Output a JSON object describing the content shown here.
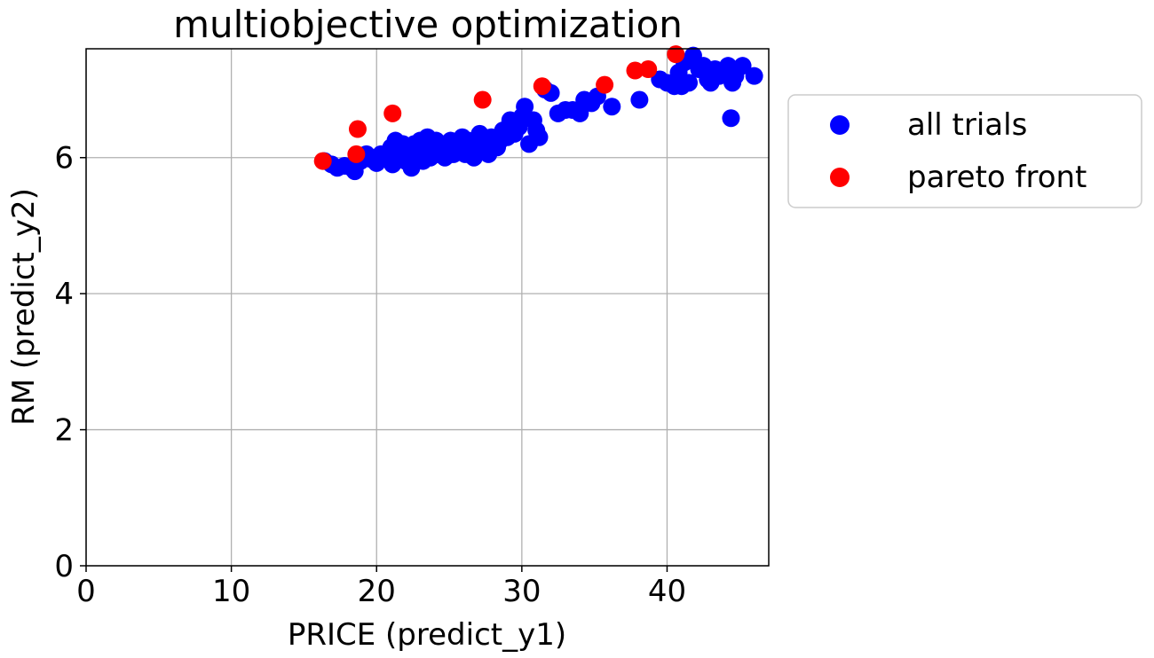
{
  "chart_data": {
    "type": "scatter",
    "title": "multiobjective optimization",
    "xlabel": "PRICE (predict_y1)",
    "ylabel": "RM (predict_y2)",
    "xlim": [
      0,
      47
    ],
    "ylim": [
      0,
      7.6
    ],
    "xticks": [
      0,
      10,
      20,
      30,
      40
    ],
    "yticks": [
      0,
      2,
      4,
      6
    ],
    "grid": true,
    "legend_position": "outside-right",
    "series": [
      {
        "name": "all trials",
        "color": "#0000ff",
        "points": [
          [
            16.4,
            5.95
          ],
          [
            16.9,
            5.9
          ],
          [
            17.3,
            5.85
          ],
          [
            17.8,
            5.88
          ],
          [
            18.2,
            5.86
          ],
          [
            18.5,
            5.8
          ],
          [
            18.9,
            5.95
          ],
          [
            19.3,
            6.05
          ],
          [
            19.6,
            5.98
          ],
          [
            20.0,
            5.92
          ],
          [
            20.3,
            6.05
          ],
          [
            20.7,
            6.0
          ],
          [
            21.0,
            6.15
          ],
          [
            21.1,
            5.9
          ],
          [
            21.3,
            6.25
          ],
          [
            21.5,
            6.05
          ],
          [
            21.8,
            6.2
          ],
          [
            22.0,
            5.95
          ],
          [
            22.2,
            6.1
          ],
          [
            22.4,
            5.85
          ],
          [
            22.6,
            6.2
          ],
          [
            22.8,
            6.05
          ],
          [
            23.0,
            6.25
          ],
          [
            23.2,
            5.95
          ],
          [
            23.3,
            6.1
          ],
          [
            23.5,
            6.3
          ],
          [
            23.7,
            6.0
          ],
          [
            23.9,
            6.15
          ],
          [
            24.1,
            6.25
          ],
          [
            24.3,
            6.05
          ],
          [
            24.5,
            6.2
          ],
          [
            24.7,
            6.0
          ],
          [
            24.9,
            6.1
          ],
          [
            25.1,
            6.25
          ],
          [
            25.3,
            6.05
          ],
          [
            25.5,
            6.2
          ],
          [
            25.7,
            6.1
          ],
          [
            25.9,
            6.3
          ],
          [
            26.1,
            6.05
          ],
          [
            26.3,
            6.25
          ],
          [
            26.5,
            6.15
          ],
          [
            26.7,
            6.0
          ],
          [
            26.9,
            6.2
          ],
          [
            27.1,
            6.35
          ],
          [
            27.3,
            6.1
          ],
          [
            27.5,
            6.25
          ],
          [
            27.7,
            6.05
          ],
          [
            27.9,
            6.3
          ],
          [
            28.1,
            6.2
          ],
          [
            28.3,
            6.15
          ],
          [
            28.5,
            6.25
          ],
          [
            28.7,
            6.4
          ],
          [
            29.0,
            6.3
          ],
          [
            29.2,
            6.55
          ],
          [
            29.5,
            6.35
          ],
          [
            29.8,
            6.45
          ],
          [
            30.0,
            6.6
          ],
          [
            30.2,
            6.75
          ],
          [
            30.5,
            6.2
          ],
          [
            30.8,
            6.55
          ],
          [
            31.0,
            6.4
          ],
          [
            31.2,
            6.3
          ],
          [
            31.6,
            7.0
          ],
          [
            32.0,
            6.95
          ],
          [
            32.5,
            6.65
          ],
          [
            33.0,
            6.7
          ],
          [
            33.5,
            6.7
          ],
          [
            34.0,
            6.65
          ],
          [
            34.3,
            6.85
          ],
          [
            34.8,
            6.8
          ],
          [
            35.2,
            6.9
          ],
          [
            36.2,
            6.75
          ],
          [
            38.1,
            6.85
          ],
          [
            39.5,
            7.15
          ],
          [
            40.0,
            7.1
          ],
          [
            40.5,
            7.05
          ],
          [
            40.8,
            7.25
          ],
          [
            41.0,
            7.05
          ],
          [
            41.2,
            7.4
          ],
          [
            41.5,
            7.1
          ],
          [
            41.8,
            7.5
          ],
          [
            42.2,
            7.3
          ],
          [
            42.5,
            7.35
          ],
          [
            42.8,
            7.15
          ],
          [
            43.0,
            7.1
          ],
          [
            43.3,
            7.3
          ],
          [
            43.6,
            7.2
          ],
          [
            44.0,
            7.25
          ],
          [
            44.2,
            7.35
          ],
          [
            44.4,
            6.58
          ],
          [
            44.5,
            7.1
          ],
          [
            44.7,
            7.2
          ],
          [
            45.2,
            7.35
          ],
          [
            46.0,
            7.2
          ]
        ]
      },
      {
        "name": "pareto front",
        "color": "#ff0000",
        "points": [
          [
            16.3,
            5.95
          ],
          [
            18.6,
            6.05
          ],
          [
            18.7,
            6.42
          ],
          [
            21.1,
            6.65
          ],
          [
            27.3,
            6.85
          ],
          [
            31.4,
            7.05
          ],
          [
            35.7,
            7.07
          ],
          [
            37.8,
            7.28
          ],
          [
            38.7,
            7.3
          ],
          [
            40.6,
            7.52
          ]
        ]
      }
    ]
  }
}
